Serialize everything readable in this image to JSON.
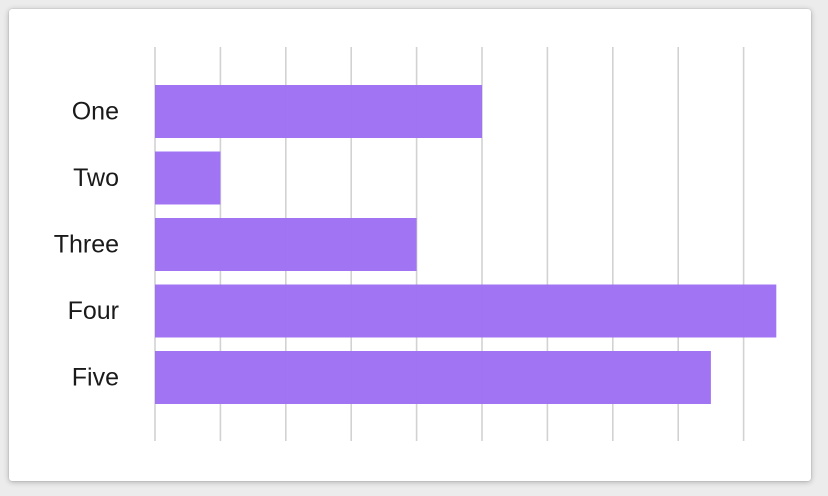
{
  "chart_data": {
    "type": "bar",
    "orientation": "horizontal",
    "categories": [
      "One",
      "Two",
      "Three",
      "Four",
      "Five"
    ],
    "values": [
      5,
      1,
      4,
      9.5,
      8.5
    ],
    "xlim": [
      0,
      9.5
    ],
    "grid": true,
    "legend": "none",
    "bar_color": "#9d6ef2",
    "grid_color": "#d2d2d2"
  }
}
